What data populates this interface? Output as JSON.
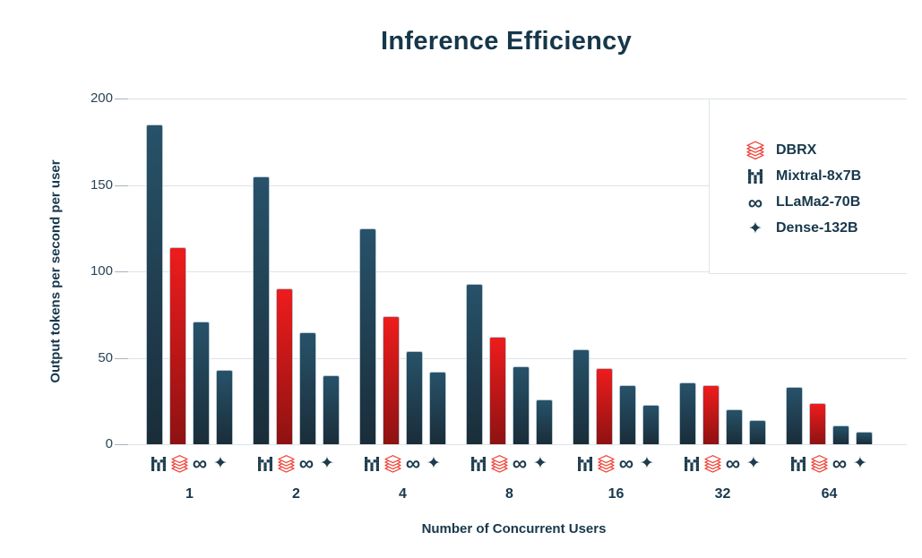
{
  "title": "Inference Efficiency",
  "chart_data": {
    "type": "bar",
    "title": "Inference Efficiency",
    "xlabel": "Number of Concurrent Users",
    "ylabel": "Output tokens per second per user",
    "categories": [
      "1",
      "2",
      "4",
      "8",
      "16",
      "32",
      "64"
    ],
    "yticks": [
      0,
      50,
      100,
      150,
      200
    ],
    "ylim": [
      0,
      200
    ],
    "grid": true,
    "legend_position": "top-right",
    "series": [
      {
        "name": "Mixtral-8x7B",
        "icon": "mixtral-icon",
        "color": "dark",
        "values": [
          185,
          155,
          125,
          93,
          55,
          36,
          33
        ]
      },
      {
        "name": "DBRX",
        "icon": "dbrx-icon",
        "color": "red",
        "values": [
          114,
          90,
          74,
          62,
          44,
          34,
          24
        ]
      },
      {
        "name": "LLaMa2-70B",
        "icon": "llama-icon",
        "color": "dark",
        "values": [
          71,
          65,
          54,
          45,
          34,
          20,
          11
        ]
      },
      {
        "name": "Dense-132B",
        "icon": "dense-icon",
        "color": "dark",
        "values": [
          43,
          40,
          42,
          26,
          23,
          14,
          7
        ]
      }
    ],
    "legend": [
      {
        "label": "DBRX",
        "icon": "dbrx-icon"
      },
      {
        "label": "Mixtral-8x7B",
        "icon": "mixtral-icon"
      },
      {
        "label": "LLaMa2-70B",
        "icon": "llama-icon"
      },
      {
        "label": "Dense-132B",
        "icon": "dense-icon"
      }
    ]
  },
  "colors": {
    "text": "#17384c",
    "tick_text": "#2b4556",
    "bar_dark_top": "#275269",
    "bar_dark_bottom": "#1a2d39",
    "bar_red_top": "#ee1c1c",
    "bar_red_bottom": "#8e1212",
    "bar_stroke": "#b9c9d4",
    "grid": "#dce3e8",
    "tick_mark": "#a8b4be",
    "icon_dark": "#1d3c4c",
    "icon_red": "#f04237"
  }
}
